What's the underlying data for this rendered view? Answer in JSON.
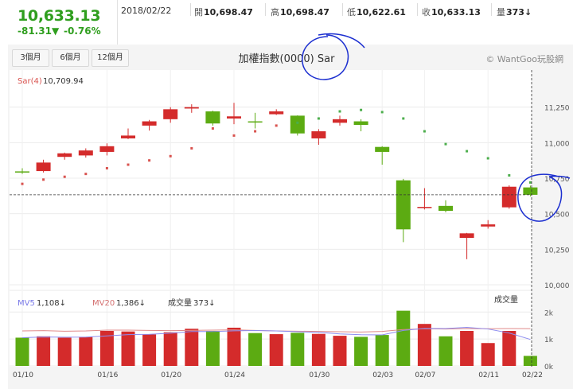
{
  "quote": {
    "price": "10,633.13",
    "change": "-81.31▼",
    "percent": "-0.76%",
    "date": "2018/02/22",
    "open_label": "開",
    "open": "10,698.47",
    "high_label": "高",
    "high": "10,698.47",
    "low_label": "低",
    "low": "10,622.61",
    "close_label": "收",
    "close": "10,633.13",
    "vol_label": "量",
    "vol": "373↓"
  },
  "tabs": [
    "3個月",
    "6個月",
    "12個月"
  ],
  "chart_title": "加權指數(0000) Sar",
  "credit": "© WantGoo玩股網",
  "colors": {
    "up": "#d42b2b",
    "down": "#5cab12",
    "sar_up": "#d9534f",
    "sar_down": "#4cae4c",
    "vol_bar": "#d42b2b",
    "ma5": "#8c8cf0",
    "ma20": "#e08a8a",
    "annotation": "#1c2fd0"
  },
  "chart_data": [
    {
      "type": "candlestick",
      "title": "加權指數(0000) Sar",
      "indicator_label": "Sar(4)",
      "indicator_value": "10,709.94",
      "ylim": [
        10000,
        11500
      ],
      "yticks": [
        10000,
        10250,
        10500,
        10750,
        11000,
        11250
      ],
      "ytick_labels": [
        "10,000",
        "10,250",
        "10,500",
        "10,750",
        "11,000",
        "11,250"
      ],
      "x_labels": [
        "01/10",
        "01/16",
        "01/20",
        "01/24",
        "01/30",
        "02/03",
        "02/07",
        "02/11",
        "02/22"
      ],
      "x_label_index": [
        0,
        4,
        7,
        10,
        14,
        17,
        19,
        22,
        24
      ],
      "last_close": 10633.13,
      "grid": true,
      "candles": [
        {
          "o": 10798,
          "h": 10820,
          "l": 10780,
          "c": 10790
        },
        {
          "o": 10800,
          "h": 10880,
          "l": 10790,
          "c": 10860
        },
        {
          "o": 10900,
          "h": 10930,
          "l": 10880,
          "c": 10925
        },
        {
          "o": 10910,
          "h": 10960,
          "l": 10895,
          "c": 10945
        },
        {
          "o": 10935,
          "h": 10995,
          "l": 10910,
          "c": 10975
        },
        {
          "o": 11030,
          "h": 11100,
          "l": 11025,
          "c": 11050
        },
        {
          "o": 11120,
          "h": 11160,
          "l": 11085,
          "c": 11150
        },
        {
          "o": 11165,
          "h": 11250,
          "l": 11140,
          "c": 11235
        },
        {
          "o": 11240,
          "h": 11270,
          "l": 11210,
          "c": 11250
        },
        {
          "o": 11220,
          "h": 11225,
          "l": 11120,
          "c": 11135
        },
        {
          "o": 11170,
          "h": 11280,
          "l": 11130,
          "c": 11185
        },
        {
          "o": 11150,
          "h": 11210,
          "l": 11100,
          "c": 11145
        },
        {
          "o": 11200,
          "h": 11235,
          "l": 11195,
          "c": 11220
        },
        {
          "o": 11190,
          "h": 11192,
          "l": 11050,
          "c": 11065
        },
        {
          "o": 11030,
          "h": 11095,
          "l": 10985,
          "c": 11080
        },
        {
          "o": 11140,
          "h": 11190,
          "l": 11120,
          "c": 11165
        },
        {
          "o": 11150,
          "h": 11165,
          "l": 11080,
          "c": 11125
        },
        {
          "o": 10970,
          "h": 10975,
          "l": 10845,
          "c": 10935
        },
        {
          "o": 10735,
          "h": 10745,
          "l": 10300,
          "c": 10390
        },
        {
          "o": 10540,
          "h": 10680,
          "l": 10530,
          "c": 10548
        },
        {
          "o": 10555,
          "h": 10595,
          "l": 10510,
          "c": 10520
        },
        {
          "o": 10330,
          "h": 10365,
          "l": 10180,
          "c": 10362
        },
        {
          "o": 10410,
          "h": 10455,
          "l": 10395,
          "c": 10425
        },
        {
          "o": 10545,
          "h": 10700,
          "l": 10535,
          "c": 10690
        },
        {
          "o": 10685,
          "h": 10698,
          "l": 10622,
          "c": 10633
        }
      ],
      "sar": [
        10710,
        10740,
        10760,
        10780,
        10820,
        10845,
        10875,
        10905,
        10960,
        11100,
        11050,
        11080,
        11120,
        11140,
        11170,
        11220,
        11230,
        11215,
        11170,
        11080,
        10990,
        10940,
        10890,
        10770,
        10720
      ]
    },
    {
      "type": "bar",
      "title": "成交量",
      "ma5_label": "MV5",
      "ma5_value": "1,108↓",
      "ma20_label": "MV20",
      "ma20_value": "1,386↓",
      "volume_label": "成交量",
      "volume_value": "373↓",
      "ylim": [
        0,
        2600
      ],
      "ytick_labels": [
        "0k",
        "1k",
        "2k"
      ],
      "yticks": [
        0,
        1000,
        2000
      ],
      "values": [
        1050,
        1100,
        1050,
        1080,
        1300,
        1280,
        1170,
        1250,
        1380,
        1300,
        1420,
        1220,
        1180,
        1230,
        1190,
        1120,
        1080,
        1150,
        2050,
        1560,
        1100,
        1300,
        850,
        1300,
        373
      ],
      "ma20": [
        1300,
        1310,
        1290,
        1300,
        1330,
        1330,
        1320,
        1310,
        1320,
        1330,
        1340,
        1320,
        1300,
        1290,
        1280,
        1270,
        1260,
        1280,
        1350,
        1380,
        1370,
        1390,
        1380,
        1390,
        1386
      ]
    }
  ]
}
